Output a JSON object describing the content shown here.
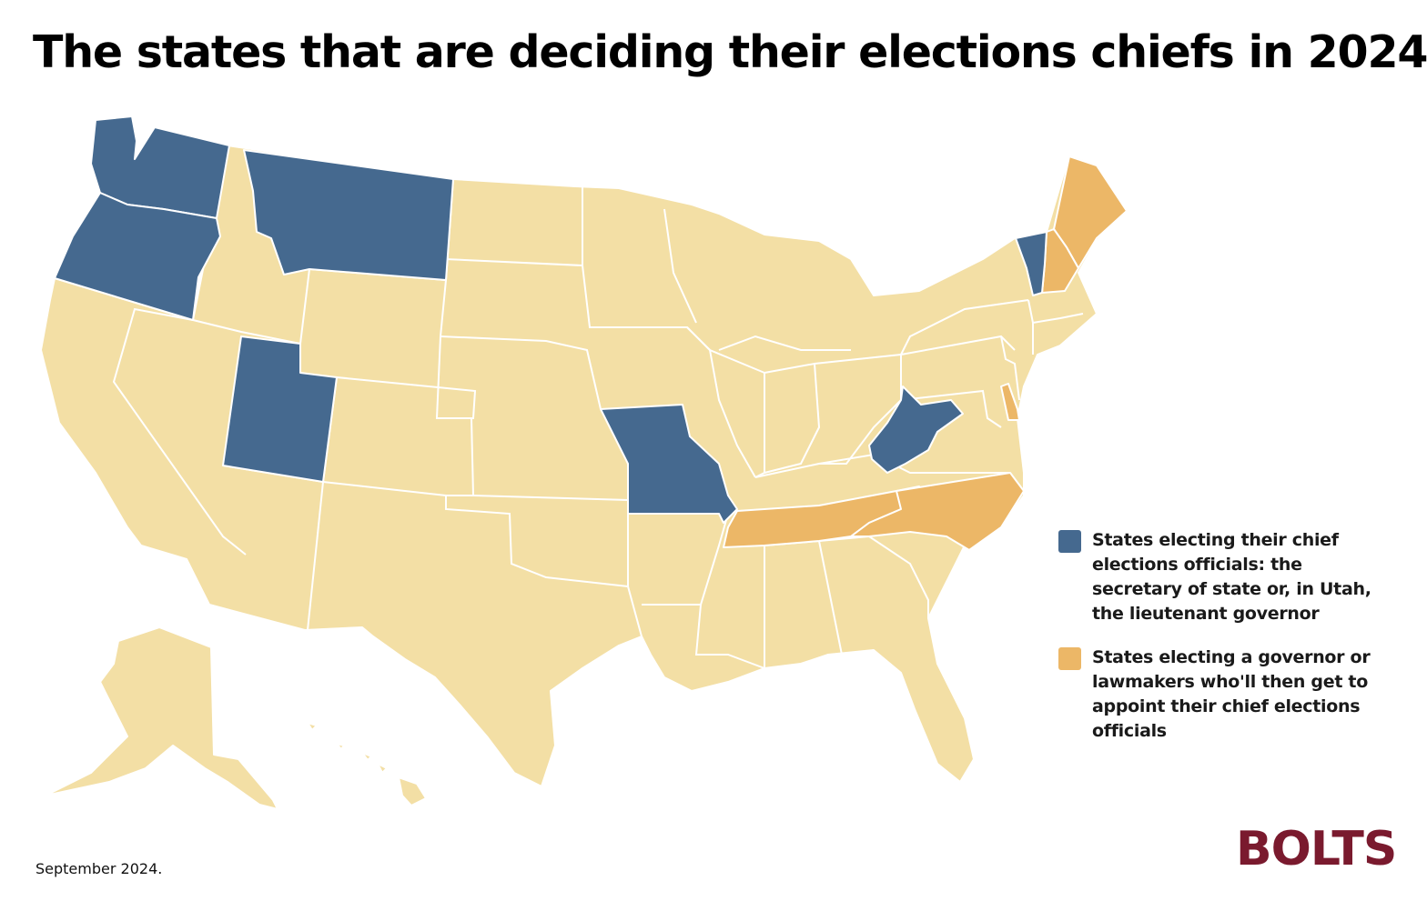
{
  "title": "The states that are deciding their elections chiefs in 2024",
  "colors": {
    "secretary_of_state": "#45698f",
    "appointing": "#ecb767",
    "other": "#f3dfa5",
    "logo": "#7a1a2e"
  },
  "legend": [
    {
      "color_key": "secretary_of_state",
      "text": "States electing their chief elections officials: the secretary of state or, in Utah, the lieutenant governor"
    },
    {
      "color_key": "appointing",
      "text": "States electing a governor or lawmakers who'll then get to appoint their chief elections officials"
    }
  ],
  "states_electing_chief_elections_officials": [
    "Washington",
    "Oregon",
    "Montana",
    "Utah",
    "Missouri",
    "West Virginia",
    "Vermont"
  ],
  "states_electing_appointing_officials": [
    "Tennessee",
    "North Carolina",
    "New Hampshire",
    "Maine",
    "Delaware"
  ],
  "footnote": "September 2024.",
  "logo_text": "BOLTS"
}
